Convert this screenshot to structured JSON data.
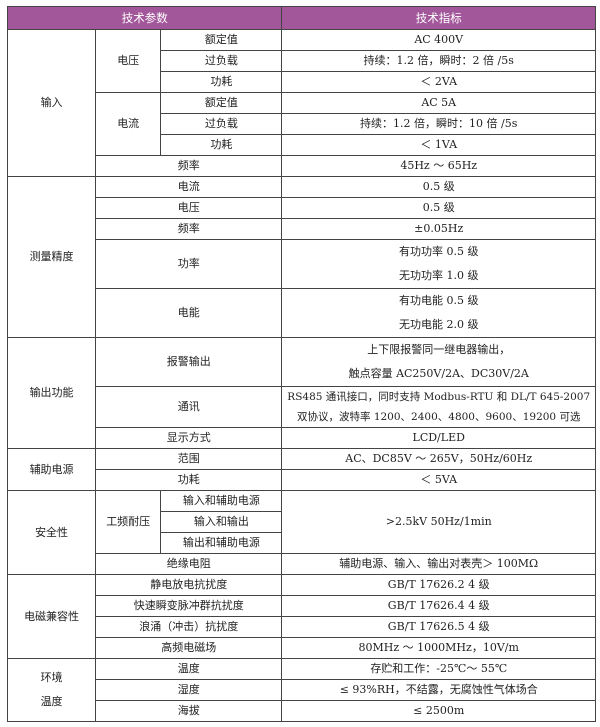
{
  "header": {
    "param": "技术参数",
    "spec": "技术指标",
    "color": "#A3579B"
  },
  "input": {
    "label": "输入",
    "voltage": {
      "label": "电压",
      "rated": "额定值",
      "rated_v": "AC 400V",
      "overload": "过负载",
      "overload_v": "持续：1.2 倍，瞬时：2 倍 /5s",
      "power": "功耗",
      "power_v": "＜ 2VA"
    },
    "current": {
      "label": "电流",
      "rated": "额定值",
      "rated_v": "AC 5A",
      "overload": "过负载",
      "overload_v": "持续：1.2 倍，瞬时：10 倍 /5s",
      "power": "功耗",
      "power_v": "＜ 1VA"
    },
    "freq": "频率",
    "freq_v": "45Hz ～ 65Hz"
  },
  "accuracy": {
    "label": "测量精度",
    "rows": [
      {
        "name": "电流",
        "value": "0.5 级"
      },
      {
        "name": "电压",
        "value": "0.5 级"
      },
      {
        "name": "频率",
        "value": "±0.05Hz"
      }
    ],
    "power": "功率",
    "power_v1": "有功功率 0.5 级",
    "power_v2": "无功功率 1.0 级",
    "energy": "电能",
    "energy_v1": "有功电能 0.5 级",
    "energy_v2": "无功电能 2.0 级"
  },
  "output": {
    "label": "输出功能",
    "alarm": "报警输出",
    "alarm_v1": "上下限报警同一继电器输出，",
    "alarm_v2": "触点容量 AC250V/2A、DC30V/2A",
    "comm": "通讯",
    "comm_v1": "RS485 通讯接口，同时支持 Modbus-RTU 和 DL/T 645-2007",
    "comm_v2": "双协议，波特率 1200、2400、4800、9600、19200 可选",
    "display": "显示方式",
    "display_v": "LCD/LED"
  },
  "aux": {
    "label": "辅助电源",
    "range": "范围",
    "range_v": "AC、DC85V ～ 265V，50Hz/60Hz",
    "power": "功耗",
    "power_v": "＜ 5VA"
  },
  "safety": {
    "label": "安全性",
    "withstand": "工频耐压",
    "pairs": [
      "输入和辅助电源",
      "输入和输出",
      "输出和辅助电源"
    ],
    "withstand_v": ">2.5kV 50Hz/1min",
    "insulation": "绝缘电阻",
    "insulation_v": "辅助电源、输入、输出对表壳＞ 100MΩ"
  },
  "emc": {
    "label": "电磁兼容性",
    "rows": [
      {
        "name": "静电放电抗扰度",
        "value": "GB/T 17626.2 4 级"
      },
      {
        "name": "快速瞬变脉冲群抗扰度",
        "value": "GB/T 17626.4 4 级"
      },
      {
        "name": "浪涌（冲击）抗扰度",
        "value": "GB/T 17626.5 4 级"
      },
      {
        "name": "高频电磁场",
        "value": "80MHz ～ 1000MHz，10V/m"
      }
    ]
  },
  "env": {
    "label1": "环境",
    "label2": "温度",
    "rows": [
      {
        "name": "温度",
        "value": "存贮和工作：-25℃～ 55℃"
      },
      {
        "name": "湿度",
        "value": "≤ 93%RH，不结露，无腐蚀性气体场合"
      },
      {
        "name": "海拔",
        "value": "≤ 2500m"
      }
    ]
  }
}
